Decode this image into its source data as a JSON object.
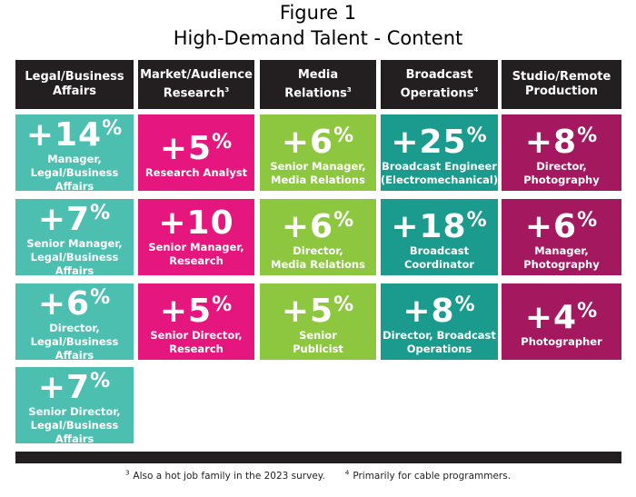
{
  "header": {
    "title": "Figure 1",
    "subtitle": "High-Demand Talent - Content"
  },
  "columns": [
    {
      "header": [
        "Legal/Business",
        "Affairs"
      ],
      "color": "#4dbfb1",
      "tiles": [
        {
          "value": "+14",
          "unit": "%",
          "label": [
            "Manager,",
            "Legal/Business Affairs"
          ]
        },
        {
          "value": "+7",
          "unit": "%",
          "label": [
            "Senior Manager,",
            "Legal/Business Affairs"
          ]
        },
        {
          "value": "+6",
          "unit": "%",
          "label": [
            "Director,",
            "Legal/Business Affairs"
          ]
        },
        {
          "value": "+7",
          "unit": "%",
          "label": [
            "Senior Director,",
            "Legal/Business Affairs"
          ]
        }
      ]
    },
    {
      "header": [
        "Market/Audience",
        "Research"
      ],
      "note": "3",
      "color": "#e5177e",
      "tiles": [
        {
          "value": "+5",
          "unit": "%",
          "label": [
            "Research Analyst"
          ]
        },
        {
          "value": "+10",
          "label": [
            "Senior Manager,",
            "Research"
          ]
        },
        {
          "value": "+5",
          "unit": "%",
          "label": [
            "Senior Director,",
            "Research"
          ]
        }
      ]
    },
    {
      "header": [
        "Media",
        "Relations"
      ],
      "note": "3",
      "color": "#8dc63f",
      "tiles": [
        {
          "value": "+6",
          "unit": "%",
          "label": [
            "Senior Manager,",
            "Media Relations"
          ]
        },
        {
          "value": "+6",
          "unit": "%",
          "label": [
            "Director,",
            "Media Relations"
          ]
        },
        {
          "value": "+5",
          "unit": "%",
          "label": [
            "Senior",
            "Publicist"
          ]
        }
      ]
    },
    {
      "header": [
        "Broadcast",
        "Operations"
      ],
      "note": "4",
      "color": "#1a9b8d",
      "tiles": [
        {
          "value": "+25",
          "unit": "%",
          "label": [
            "Broadcast Engineer",
            "(Electromechanical)"
          ]
        },
        {
          "value": "+18",
          "unit": "%",
          "label": [
            "Broadcast",
            "Coordinator"
          ]
        },
        {
          "value": "+8",
          "unit": "%",
          "label": [
            "Director, Broadcast",
            "Operations"
          ]
        }
      ]
    },
    {
      "header": [
        "Studio/Remote",
        "Production"
      ],
      "color": "#a3185f",
      "tiles": [
        {
          "value": "+8",
          "unit": "%",
          "label": [
            "Director,",
            "Photography"
          ]
        },
        {
          "value": "+6",
          "unit": "%",
          "label": [
            "Manager,",
            "Photography"
          ]
        },
        {
          "value": "+4",
          "unit": "%",
          "label": [
            "Photographer"
          ]
        }
      ]
    }
  ],
  "footnotes": [
    {
      "marker": "3",
      "text": "Also a hot job family in the 2023 survey."
    },
    {
      "marker": "4",
      "text": "Primarily for cable programmers."
    }
  ]
}
